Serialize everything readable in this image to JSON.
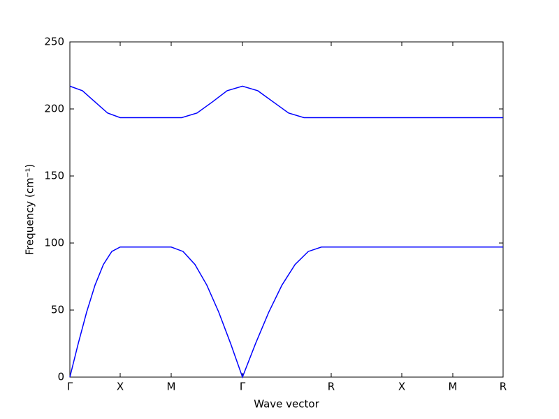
{
  "chart_data": {
    "type": "line",
    "xlabel": "Wave vector",
    "ylabel": "Frequency (cm⁻¹)",
    "xlim": [
      0,
      620
    ],
    "xticks": [
      {
        "value": 0,
        "label": "Γ"
      },
      {
        "value": 72,
        "label": "X"
      },
      {
        "value": 145,
        "label": "M"
      },
      {
        "value": 247,
        "label": "Γ"
      },
      {
        "value": 374,
        "label": "R"
      },
      {
        "value": 475,
        "label": "X"
      },
      {
        "value": 548,
        "label": "M"
      },
      {
        "value": 620,
        "label": "R"
      }
    ],
    "ylim": [
      0,
      250
    ],
    "yticks": [
      0,
      50,
      100,
      150,
      200,
      250
    ],
    "series": [
      {
        "color": "#0000ff",
        "x": [
          0,
          12,
          24,
          36,
          48,
          60,
          72,
          145,
          162,
          179,
          196,
          213,
          230,
          247,
          265.8,
          284.7,
          303.5,
          322.3,
          341.2,
          360,
          374,
          475,
          548,
          620
        ],
        "values": [
          0,
          25.1,
          48.5,
          68.6,
          84.0,
          93.7,
          97,
          97,
          93.7,
          84.0,
          68.6,
          48.5,
          25.1,
          0,
          25.1,
          48.5,
          68.6,
          84.0,
          93.7,
          97,
          97,
          97,
          97,
          97
        ]
      },
      {
        "color": "#0000ff",
        "x": [
          0,
          18,
          36,
          54,
          72,
          145,
          160,
          182,
          204,
          225,
          247,
          269,
          291,
          313,
          335,
          374,
          475,
          548,
          620
        ],
        "values": [
          217,
          213.56,
          205.25,
          196.94,
          193.5,
          193.5,
          193.5,
          196.94,
          205.25,
          213.56,
          217,
          213.56,
          205.25,
          196.94,
          193.5,
          193.5,
          193.5,
          193.5,
          193.5
        ]
      }
    ]
  }
}
